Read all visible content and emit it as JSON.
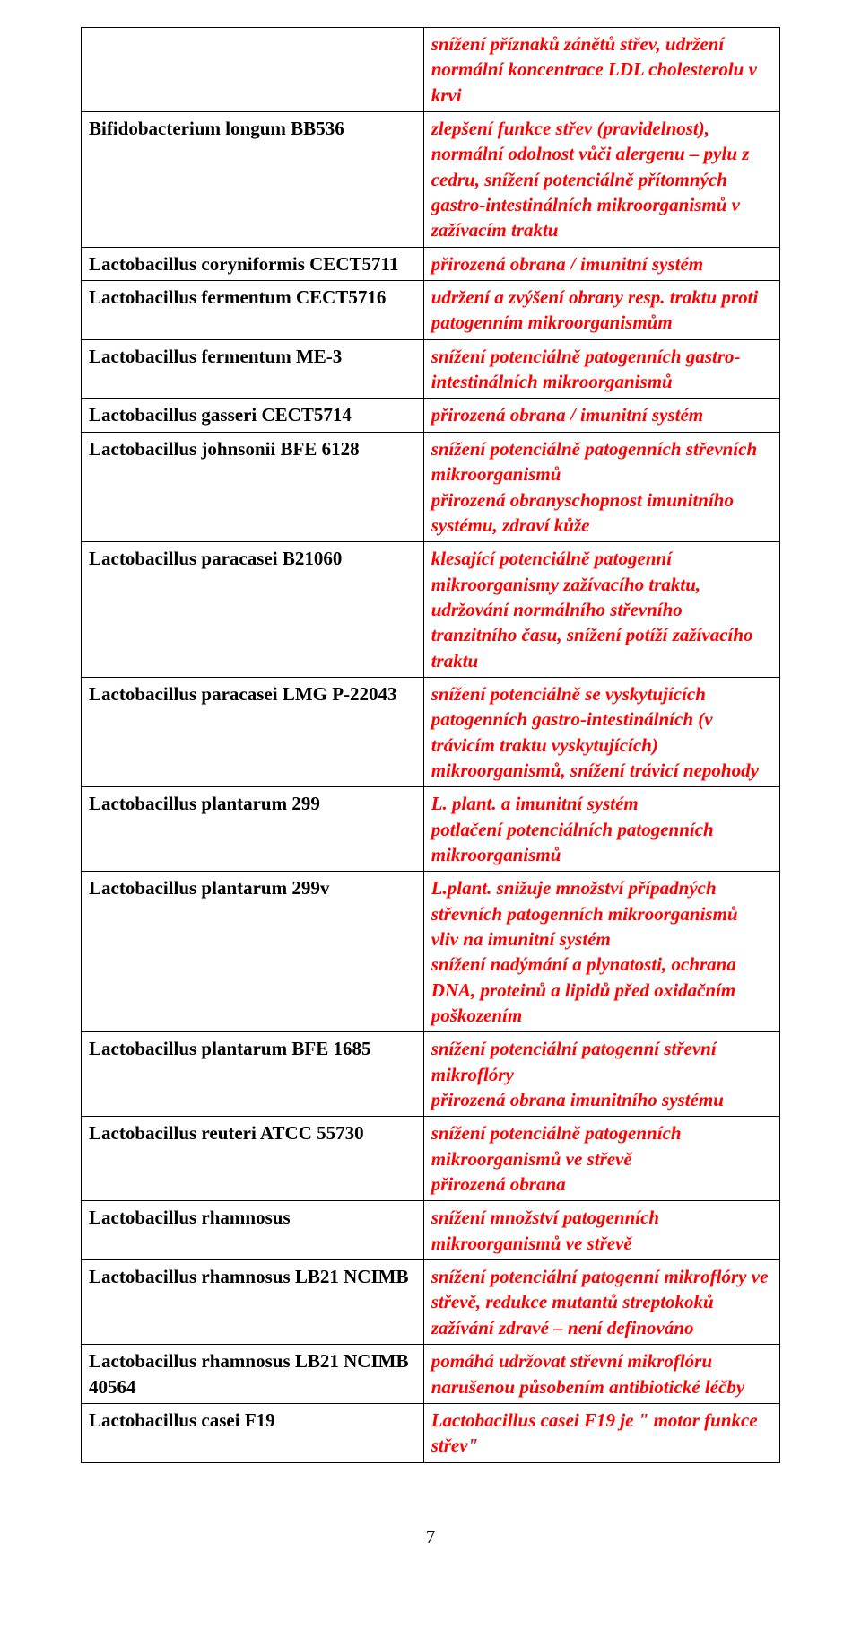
{
  "table": {
    "rows": [
      {
        "left": "",
        "right": "snížení příznaků zánětů střev, udržení normální koncentrace LDL cholesterolu v krvi"
      },
      {
        "left": "Bifidobacterium longum BB536",
        "right": "zlepšení funkce střev (pravidelnost), normální odolnost vůči alergenu – pylu z cedru, snížení potenciálně přítomných gastro-intestinálních mikroorganismů v zažívacím traktu"
      },
      {
        "left": "Lactobacillus coryniformis CECT5711",
        "right": "přirozená obrana / imunitní systém"
      },
      {
        "left": "Lactobacillus fermentum CECT5716",
        "right": "udržení a zvýšení obrany resp. traktu proti patogenním mikroorganismům"
      },
      {
        "left": "Lactobacillus fermentum ME-3",
        "right": "snížení  potenciálně patogenních gastro-intestinálních mikroorganismů"
      },
      {
        "left": "Lactobacillus gasseri CECT5714",
        "right": "přirozená obrana / imunitní systém"
      },
      {
        "left": "Lactobacillus johnsonii BFE 6128",
        "right": "snížení potenciálně patogenních střevních mikroorganismů\npřirozená obranyschopnost imunitního systému, zdraví kůže"
      },
      {
        "left": "Lactobacillus paracasei B21060",
        "right": "klesající potenciálně patogenní mikroorganismy zažívacího traktu, udržování normálního střevního tranzitního času, snížení potíží zažívacího traktu"
      },
      {
        "left": "Lactobacillus paracasei LMG P-22043",
        "right": "snížení potenciálně se vyskytujících patogenních gastro-intestinálních (v trávicím traktu vyskytujících) mikroorganismů, snížení trávicí nepohody"
      },
      {
        "left": "Lactobacillus plantarum 299",
        "right": "L. plant. a imunitní systém\npotlačení potenciálních patogenních mikroorganismů"
      },
      {
        "left": "Lactobacillus plantarum 299v",
        "right": "L.plant. snižuje množství případných střevních patogenních mikroorganismů\nvliv na imunitní systém\nsnížení nadýmání a plynatosti, ochrana DNA, proteinů a lipidů před oxidačním poškozením"
      },
      {
        "left": "Lactobacillus plantarum BFE 1685",
        "right": "snížení potenciální patogenní střevní mikroflóry\npřirozená obrana imunitního systému"
      },
      {
        "left": "Lactobacillus reuteri ATCC 55730",
        "right": "snížení potenciálně patogenních mikroorganismů ve střevě\npřirozená obrana"
      },
      {
        "left": "Lactobacillus rhamnosus",
        "right": "snížení množství patogenních mikroorganismů ve střevě"
      },
      {
        "left": "Lactobacillus rhamnosus LB21 NCIMB",
        "right": "snížení potenciální patogenní mikroflóry ve střevě, redukce mutantů streptokoků\nzažívání zdravé – není definováno"
      },
      {
        "left": "Lactobacillus rhamnosus LB21 NCIMB 40564",
        "right": "pomáhá udržovat střevní mikroflóru narušenou působením antibiotické léčby"
      },
      {
        "left": "Lactobacillus casei F19",
        "right": "Lactobacillus casei F19 je \" motor funkce střev\""
      }
    ]
  },
  "page_number": "7"
}
